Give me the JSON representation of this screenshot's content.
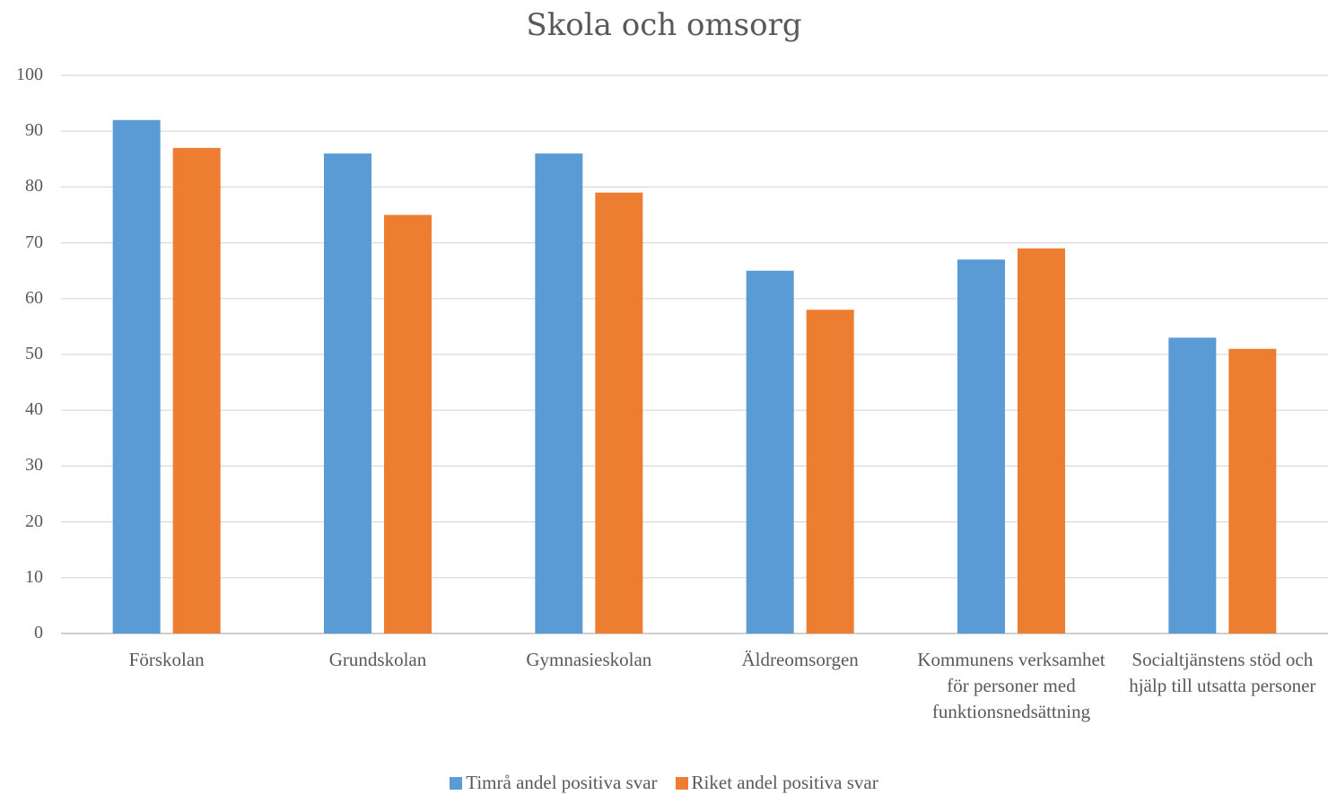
{
  "chart_data": {
    "type": "bar",
    "title": "Skola och omsorg",
    "categories": [
      "Förskolan",
      "Grundskolan",
      "Gymnasieskolan",
      "Äldreomsorgen",
      "Kommunens verksamhet för personer med funktionsnedsättning",
      "Socialtjänstens stöd och hjälp till utsatta personer"
    ],
    "series": [
      {
        "name": "Timrå andel positiva svar",
        "color": "#5B9BD5",
        "values": [
          92,
          86,
          86,
          65,
          67,
          53
        ]
      },
      {
        "name": "Riket andel positiva svar",
        "color": "#ED7D31",
        "values": [
          87,
          75,
          79,
          58,
          69,
          51
        ]
      }
    ],
    "ylim": [
      0,
      100
    ],
    "yticks": [
      "0",
      "10",
      "20",
      "30",
      "40",
      "50",
      "60",
      "70",
      "80",
      "90",
      "100"
    ],
    "grid": true,
    "legend_position": "bottom"
  }
}
